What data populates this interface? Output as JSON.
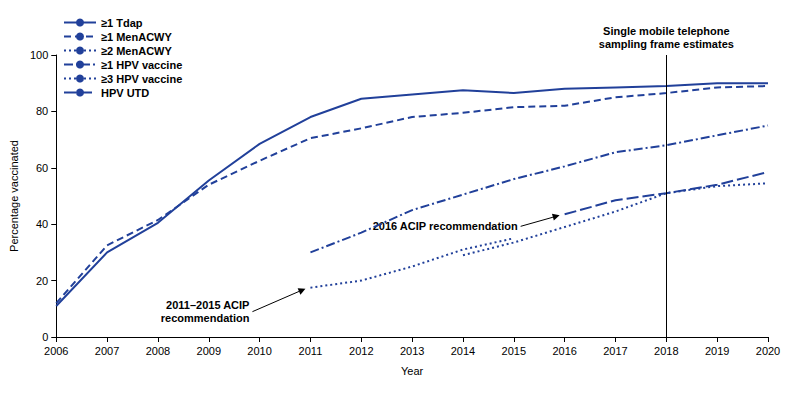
{
  "chart_data": {
    "type": "line",
    "x_label": "Year",
    "y_label": "Percentage vaccinated",
    "categories": [
      "2006",
      "2007",
      "2008",
      "2009",
      "2010",
      "2011",
      "2012",
      "2013",
      "2014",
      "2015",
      "2016",
      "2017",
      "2018",
      "2019",
      "2020"
    ],
    "series": [
      {
        "name": "≥1 Tdap",
        "color": "#21409a",
        "line_style": "solid",
        "values": [
          11,
          30,
          40.5,
          55.5,
          68.5,
          78,
          84.5,
          86,
          87.5,
          86.5,
          88,
          88.5,
          89,
          90,
          90
        ]
      },
      {
        "name": "≥1 MenACWY",
        "color": "#21409a",
        "line_style": "dashed",
        "values": [
          12,
          32.5,
          41.5,
          54,
          62.5,
          70.5,
          74,
          78,
          79.5,
          81.5,
          82,
          85,
          86.5,
          88.5,
          89
        ]
      },
      {
        "name": "≥2 MenACWY",
        "color": "#21409a",
        "line_style": "dotted",
        "values": [
          null,
          null,
          null,
          null,
          null,
          null,
          null,
          null,
          29,
          33.5,
          39,
          44.5,
          51,
          53.5,
          54.5
        ]
      },
      {
        "name": "≥1 HPV vaccine",
        "color": "#21409a",
        "line_style": "dashdot",
        "values": [
          null,
          null,
          null,
          null,
          null,
          30,
          37,
          45,
          50.5,
          56,
          60.5,
          65.5,
          68,
          71.5,
          75
        ]
      },
      {
        "name": "≥3 HPV vaccine",
        "color": "#21409a",
        "line_style": "dotted",
        "values": [
          null,
          null,
          null,
          null,
          null,
          17.5,
          20,
          25,
          31,
          35,
          null,
          null,
          null,
          null,
          null
        ]
      },
      {
        "name": "HPV UTD",
        "color": "#21409a",
        "line_style": "longdash",
        "values": [
          null,
          null,
          null,
          null,
          null,
          null,
          null,
          null,
          null,
          null,
          43.5,
          48.5,
          51,
          54,
          58.5
        ]
      }
    ],
    "ylim": [
      0,
      100
    ],
    "yticks": [
      0,
      20,
      40,
      60,
      80,
      100
    ],
    "grid": false,
    "legend": "top-left",
    "annotations": [
      {
        "type": "vline",
        "x": "2018",
        "text": "Single mobile telephone\nsampling frame estimates"
      },
      {
        "type": "arrow",
        "x": "2016",
        "y": 43.5,
        "text": "2016 ACIP recommendation"
      },
      {
        "type": "arrow",
        "x": "2011",
        "y": 17.5,
        "text": "2011–2015 ACIP\nrecommendation"
      }
    ]
  }
}
